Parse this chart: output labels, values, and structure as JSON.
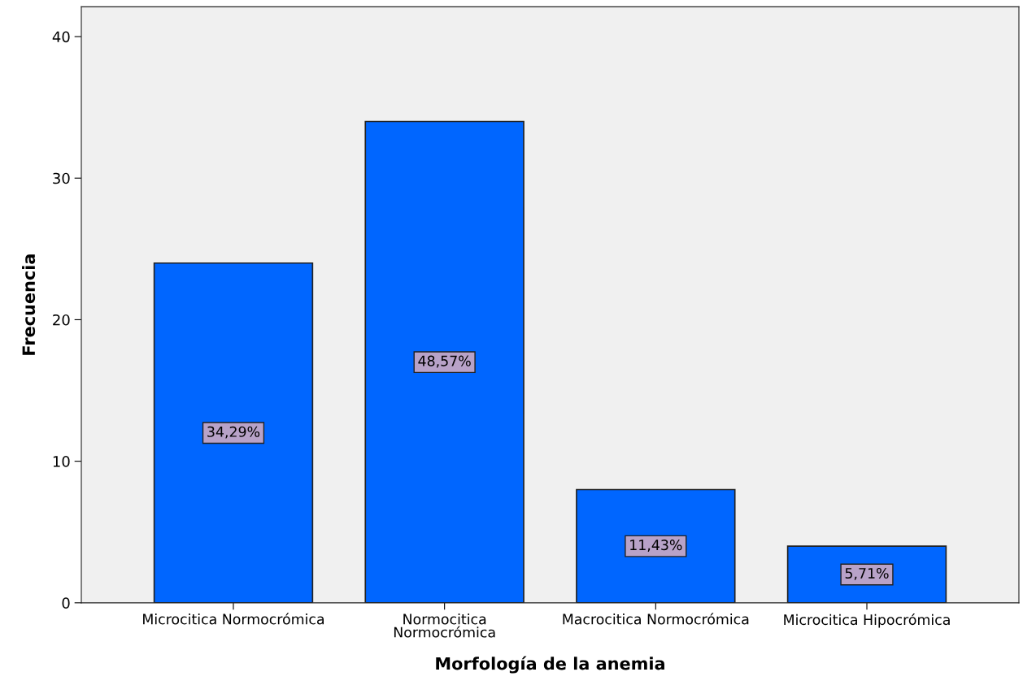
{
  "chart_data": {
    "type": "bar",
    "xlabel": "Morfología de la anemia",
    "ylabel": "Frecuencia",
    "categories": [
      "Microcitica Normocrómica",
      "Normocitica\nNormocrómica",
      "Macrocitica Normocrómica",
      "Microcitica Hipocrómica"
    ],
    "values": [
      24,
      34,
      8,
      4
    ],
    "annotations": [
      "34,29%",
      "48,57%",
      "11,43%",
      "5,71%"
    ],
    "color": "#0066ff",
    "ylim": [
      0,
      42.1
    ],
    "yticks": [
      0,
      10,
      20,
      30,
      40
    ],
    "grid": false
  }
}
